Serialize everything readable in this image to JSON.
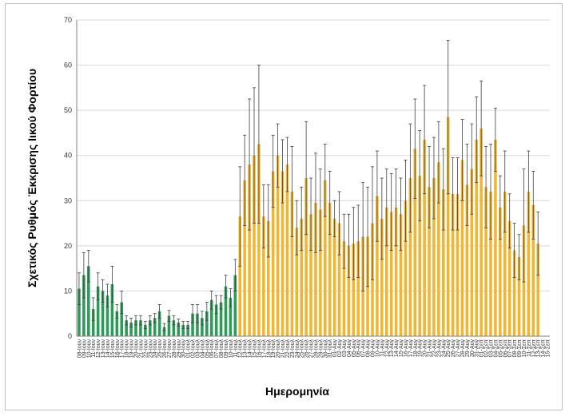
{
  "chart_data": {
    "type": "bar",
    "title": "",
    "xlabel": "Ημερομηνία",
    "ylabel": "Σχετικός Ρυθμός Έκκρισης Ιικού Φορτίου",
    "ylim": [
      0,
      70
    ],
    "yticks": [
      0,
      10,
      20,
      30,
      40,
      50,
      60,
      70
    ],
    "grid": true,
    "legend": "none",
    "colors": {
      "june": "#2e9a5a",
      "summer": "#f2b531",
      "error_bar": "#404040",
      "grid": "#d9d9d9"
    },
    "categories": [
      "08-Ιουν",
      "09-Ιουν",
      "10-Ιουν",
      "11-Ιουν",
      "12-Ιουν",
      "13-Ιουν",
      "14-Ιουν",
      "15-Ιουν",
      "16-Ιουν",
      "17-Ιουν",
      "18-Ιουν",
      "19-Ιουν",
      "20-Ιουν",
      "21-Ιουν",
      "22-Ιουν",
      "23-Ιουν",
      "24-Ιουν",
      "25-Ιουν",
      "26-Ιουν",
      "27-Ιουν",
      "28-Ιουν",
      "29-Ιουν",
      "30-Ιουν",
      "01-Ιουλ",
      "02-Ιουλ",
      "03-Ιουλ",
      "04-Ιουλ",
      "05-Ιουλ",
      "06-Ιουλ",
      "07-Ιουλ",
      "08-Ιουλ",
      "09-Ιουλ",
      "10-Ιουλ",
      "11-Ιουλ",
      "12-Ιουλ",
      "13-Ιουλ",
      "14-Ιουλ",
      "15-Ιουλ",
      "16-Ιουλ",
      "17-Ιουλ",
      "18-Ιουλ",
      "19-Ιουλ",
      "20-Ιουλ",
      "21-Ιουλ",
      "22-Ιουλ",
      "23-Ιουλ",
      "24-Ιουλ",
      "25-Ιουλ",
      "26-Ιουλ",
      "27-Ιουλ",
      "28-Ιουλ",
      "29-Ιουλ",
      "30-Ιουλ",
      "31-Ιουλ",
      "01-Αυγ",
      "02-Αυγ",
      "03-Αυγ",
      "04-Αυγ",
      "05-Αυγ",
      "06-Αυγ",
      "07-Αυγ",
      "08-Αυγ",
      "09-Αυγ",
      "10-Αυγ",
      "11-Αυγ",
      "12-Αυγ",
      "13-Αυγ",
      "14-Αυγ",
      "15-Αυγ",
      "16-Αυγ",
      "17-Αυγ",
      "18-Αυγ",
      "19-Αυγ",
      "20-Αυγ",
      "21-Αυγ",
      "22-Αυγ",
      "23-Αυγ",
      "24-Αυγ",
      "25-Αυγ",
      "26-Αυγ",
      "27-Αυγ",
      "28-Αυγ",
      "29-Αυγ",
      "30-Αυγ",
      "31-Αυγ",
      "01-Σεπ",
      "02-Σεπ",
      "03-Σεπ",
      "04-Σεπ",
      "05-Σεπ",
      "06-Σεπ",
      "07-Σεπ",
      "08-Σεπ",
      "09-Σεπ",
      "10-Σεπ",
      "11-Σεπ",
      "12-Σεπ",
      "13-Σεπ",
      "14-Σεπ",
      "15-Σεπ"
    ],
    "values": [
      10.5,
      13.5,
      15.5,
      6,
      11,
      10,
      9,
      11.5,
      5.5,
      7.5,
      3.5,
      3,
      3.5,
      3.5,
      2.5,
      3.5,
      4,
      5.5,
      2,
      4.5,
      3.5,
      3,
      2.5,
      2.5,
      5,
      5,
      4,
      5.5,
      8,
      7,
      7.5,
      11,
      8.5,
      13.5,
      26.5,
      34.5,
      38,
      40,
      42.5,
      26.5,
      25.5,
      36.5,
      40,
      36.5,
      38,
      32,
      24,
      26,
      35,
      27,
      29.5,
      28,
      34.5,
      29.5,
      26,
      25,
      21,
      20,
      20.5,
      21,
      22,
      22,
      25,
      31,
      26,
      28.5,
      27.5,
      28.5,
      27,
      30,
      35,
      41.5,
      35.5,
      43.5,
      33,
      35,
      38.5,
      32.5,
      48.5,
      31.5,
      31.5,
      39,
      33.5,
      37,
      43.5,
      46,
      33,
      32,
      43.5,
      28.5,
      32,
      25.5,
      19,
      17.5,
      24.5,
      32,
      29,
      20.5,
      0,
      0
    ],
    "errors": [
      3.5,
      5,
      3.5,
      2.5,
      3,
      2.5,
      2.5,
      4,
      1.5,
      2.5,
      1,
      1,
      1,
      1,
      0.8,
      1,
      1,
      1.5,
      0.8,
      1.2,
      1,
      0.8,
      0.8,
      0.8,
      2,
      2,
      1.5,
      2,
      2,
      2,
      1.5,
      2.5,
      2,
      3.5,
      11,
      10,
      14.5,
      15,
      17.5,
      7,
      8,
      8,
      7,
      7,
      6,
      10,
      6,
      7,
      12.5,
      8,
      11,
      9,
      8,
      7,
      4,
      7,
      6,
      7,
      8,
      8,
      12,
      11,
      12.5,
      10,
      9,
      8.5,
      8.5,
      8.5,
      8,
      9,
      12,
      11,
      10,
      12,
      9,
      9,
      9,
      9,
      17,
      8,
      8,
      9,
      9,
      10,
      9.5,
      10.5,
      9,
      10.5,
      7,
      7,
      9,
      6,
      6,
      5,
      12.5,
      9,
      7.5,
      7,
      0,
      0
    ],
    "group_split_index": 34,
    "visible_count": 98
  }
}
